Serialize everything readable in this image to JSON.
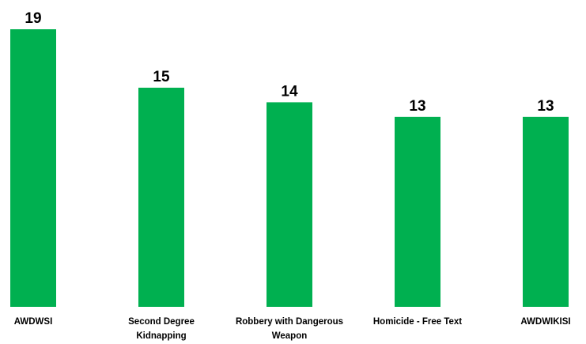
{
  "chart_data": {
    "type": "bar",
    "categories": [
      [
        "AWDWSI"
      ],
      [
        "Second Degree",
        "Kidnapping"
      ],
      [
        "Robbery with Dangerous",
        "Weapon"
      ],
      [
        "Homicide - Free Text"
      ],
      [
        "AWDWIKISI"
      ]
    ],
    "values": [
      19,
      15,
      14,
      13,
      13
    ],
    "ylim": [
      0,
      19
    ],
    "grid": false,
    "data_labels": true,
    "bar_color": "#00B050"
  }
}
